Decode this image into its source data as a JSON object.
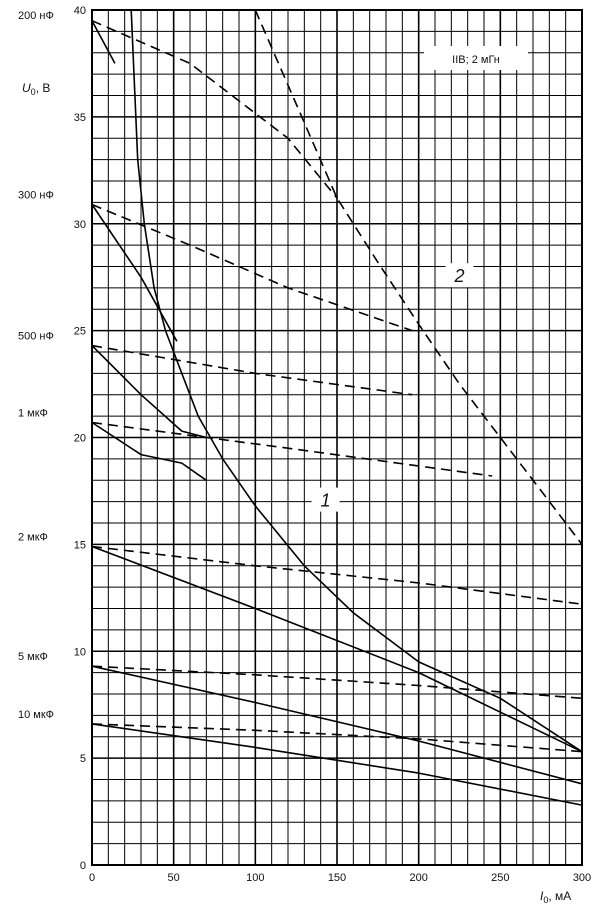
{
  "chart_data": {
    "type": "line",
    "xlabel": {
      "symbol": "I",
      "sub": "0",
      "unit": ", мА"
    },
    "ylabel": {
      "symbol": "U",
      "sub": "0",
      "unit": ", В"
    },
    "xlim": [
      0,
      300
    ],
    "ylim": [
      0,
      40
    ],
    "x_ticks": [
      0,
      50,
      100,
      150,
      200,
      250,
      300
    ],
    "y_ticks": [
      0,
      5,
      10,
      15,
      20,
      25,
      30,
      35,
      40
    ],
    "grid": true,
    "legend_box": "IIB; 2 мГн",
    "curve_labels": [
      {
        "text": "1",
        "x": 143,
        "y": 17
      },
      {
        "text": "2",
        "x": 225,
        "y": 27.5
      }
    ],
    "capacitance_labels": [
      {
        "text": "200 нФ",
        "y": 39.3
      },
      {
        "text": "300 нФ",
        "y": 30.9
      },
      {
        "text": "500 нФ",
        "y": 24.3
      },
      {
        "text": "1 мкФ",
        "y": 20.7
      },
      {
        "text": "2 мкФ",
        "y": 14.9
      },
      {
        "text": "5 мкФ",
        "y": 9.3
      },
      {
        "text": "10 мкФ",
        "y": 6.6
      }
    ],
    "series": [
      {
        "style": "solid",
        "x": [
          0,
          14
        ],
        "y": [
          39.5,
          37.5
        ]
      },
      {
        "style": "dashed",
        "x": [
          0,
          60,
          120,
          150
        ],
        "y": [
          39.5,
          37.5,
          34,
          31.2
        ]
      },
      {
        "style": "solid",
        "x": [
          0,
          30,
          52
        ],
        "y": [
          30.9,
          27.5,
          24.5
        ]
      },
      {
        "style": "dashed",
        "x": [
          0,
          60,
          120,
          196
        ],
        "y": [
          30.9,
          29,
          27,
          25
        ]
      },
      {
        "style": "solid",
        "x": [
          0,
          30,
          55,
          70
        ],
        "y": [
          24.3,
          22,
          20.3,
          20
        ]
      },
      {
        "style": "dashed",
        "x": [
          0,
          100,
          196
        ],
        "y": [
          24.3,
          23,
          22
        ]
      },
      {
        "style": "solid",
        "x": [
          0,
          30,
          55,
          70
        ],
        "y": [
          20.7,
          19.2,
          18.8,
          18
        ]
      },
      {
        "style": "dashed",
        "x": [
          0,
          120,
          245
        ],
        "y": [
          20.7,
          19.5,
          18.2
        ]
      },
      {
        "style": "solid",
        "x": [
          0,
          100,
          200,
          300
        ],
        "y": [
          14.9,
          12,
          9,
          5.3
        ]
      },
      {
        "style": "dashed",
        "x": [
          0,
          100,
          200,
          300
        ],
        "y": [
          14.9,
          14,
          13.2,
          12.2
        ]
      },
      {
        "style": "solid",
        "x": [
          0,
          100,
          200,
          300
        ],
        "y": [
          9.3,
          7.6,
          5.8,
          3.8
        ]
      },
      {
        "style": "dashed",
        "x": [
          0,
          100,
          200,
          300
        ],
        "y": [
          9.3,
          8.9,
          8.4,
          7.8
        ]
      },
      {
        "style": "solid",
        "x": [
          0,
          100,
          200,
          300
        ],
        "y": [
          6.6,
          5.5,
          4.3,
          2.8
        ]
      },
      {
        "style": "dashed",
        "x": [
          0,
          100,
          200,
          300
        ],
        "y": [
          6.6,
          6.3,
          5.9,
          5.3
        ]
      },
      {
        "style": "solid",
        "name": "1",
        "x": [
          24,
          28,
          32,
          38,
          45,
          55,
          65,
          80,
          100,
          130,
          160,
          200,
          250,
          300
        ],
        "y": [
          40,
          33,
          30,
          27,
          25,
          23,
          21,
          19,
          16.8,
          14,
          11.8,
          9.5,
          7.8,
          5.3
        ]
      },
      {
        "style": "dashed",
        "name": "2",
        "x": [
          100,
          125,
          150,
          175,
          200,
          225,
          250,
          275,
          300
        ],
        "y": [
          40,
          35.6,
          31.2,
          28.2,
          25.3,
          22.5,
          20,
          17.5,
          15
        ]
      }
    ]
  }
}
